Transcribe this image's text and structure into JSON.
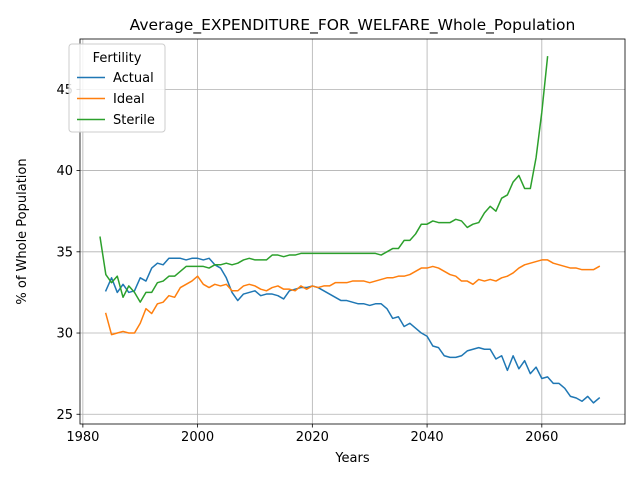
{
  "chart_data": {
    "type": "line",
    "title": "Average_EXPENDITURE_FOR_WELFARE_Whole_Population",
    "xlabel": "Years",
    "ylabel": "% of Whole Population",
    "xlim": [
      1979.5,
      2074.5
    ],
    "ylim": [
      24.4,
      48.1
    ],
    "xticks": [
      1980,
      2000,
      2020,
      2040,
      2060
    ],
    "yticks": [
      25,
      30,
      35,
      40,
      45
    ],
    "grid": true,
    "legend": {
      "title": "Fertility",
      "position": "upper-left"
    },
    "series": [
      {
        "name": "Actual",
        "color": "#1f77b4",
        "x": [
          1984,
          1985,
          1986,
          1987,
          1988,
          1989,
          1990,
          1991,
          1992,
          1993,
          1994,
          1995,
          1996,
          1997,
          1998,
          1999,
          2000,
          2001,
          2002,
          2003,
          2004,
          2005,
          2006,
          2007,
          2008,
          2009,
          2010,
          2011,
          2012,
          2013,
          2014,
          2015,
          2016,
          2017,
          2018,
          2019,
          2020,
          2021,
          2022,
          2023,
          2024,
          2025,
          2026,
          2027,
          2028,
          2029,
          2030,
          2031,
          2032,
          2033,
          2034,
          2035,
          2036,
          2037,
          2038,
          2039,
          2040,
          2041,
          2042,
          2043,
          2044,
          2045,
          2046,
          2047,
          2048,
          2049,
          2050,
          2051,
          2052,
          2053,
          2054,
          2055,
          2056,
          2057,
          2058,
          2059,
          2060,
          2061,
          2062,
          2063,
          2064,
          2065,
          2066,
          2067,
          2068,
          2069,
          2070
        ],
        "y": [
          32.6,
          33.4,
          32.5,
          33.0,
          32.5,
          32.6,
          33.4,
          33.2,
          34.0,
          34.3,
          34.2,
          34.6,
          34.6,
          34.6,
          34.5,
          34.6,
          34.6,
          34.5,
          34.6,
          34.2,
          34.0,
          33.4,
          32.5,
          32.0,
          32.4,
          32.5,
          32.6,
          32.3,
          32.4,
          32.4,
          32.3,
          32.1,
          32.6,
          32.7,
          32.8,
          32.8,
          32.9,
          32.8,
          32.6,
          32.4,
          32.2,
          32.0,
          32.0,
          31.9,
          31.8,
          31.8,
          31.7,
          31.8,
          31.8,
          31.5,
          30.9,
          31.0,
          30.4,
          30.6,
          30.3,
          30.0,
          29.8,
          29.2,
          29.1,
          28.6,
          28.5,
          28.5,
          28.6,
          28.9,
          29.0,
          29.1,
          29.0,
          29.0,
          28.4,
          28.6,
          27.7,
          28.6,
          27.8,
          28.3,
          27.5,
          27.9,
          27.2,
          27.3,
          26.9,
          26.9,
          26.6,
          26.1,
          26.0,
          25.8,
          26.1,
          25.7,
          26.0
        ]
      },
      {
        "name": "Ideal",
        "color": "#ff7f0e",
        "x": [
          1984,
          1985,
          1986,
          1987,
          1988,
          1989,
          1990,
          1991,
          1992,
          1993,
          1994,
          1995,
          1996,
          1997,
          1998,
          1999,
          2000,
          2001,
          2002,
          2003,
          2004,
          2005,
          2006,
          2007,
          2008,
          2009,
          2010,
          2011,
          2012,
          2013,
          2014,
          2015,
          2016,
          2017,
          2018,
          2019,
          2020,
          2021,
          2022,
          2023,
          2024,
          2025,
          2026,
          2027,
          2028,
          2029,
          2030,
          2031,
          2032,
          2033,
          2034,
          2035,
          2036,
          2037,
          2038,
          2039,
          2040,
          2041,
          2042,
          2043,
          2044,
          2045,
          2046,
          2047,
          2048,
          2049,
          2050,
          2051,
          2052,
          2053,
          2054,
          2055,
          2056,
          2057,
          2058,
          2059,
          2060,
          2061,
          2062,
          2063,
          2064,
          2065,
          2066,
          2067,
          2068,
          2069,
          2070
        ],
        "y": [
          31.2,
          29.9,
          30.0,
          30.1,
          30.0,
          30.0,
          30.6,
          31.5,
          31.2,
          31.8,
          31.9,
          32.3,
          32.2,
          32.8,
          33.0,
          33.2,
          33.5,
          33.0,
          32.8,
          33.0,
          32.9,
          33.0,
          32.6,
          32.6,
          32.9,
          33.0,
          32.9,
          32.7,
          32.6,
          32.8,
          32.9,
          32.7,
          32.7,
          32.6,
          32.9,
          32.7,
          32.9,
          32.8,
          32.9,
          32.9,
          33.1,
          33.1,
          33.1,
          33.2,
          33.2,
          33.2,
          33.1,
          33.2,
          33.3,
          33.4,
          33.4,
          33.5,
          33.5,
          33.6,
          33.8,
          34.0,
          34.0,
          34.1,
          34.0,
          33.8,
          33.6,
          33.5,
          33.2,
          33.2,
          33.0,
          33.3,
          33.2,
          33.3,
          33.2,
          33.4,
          33.5,
          33.7,
          34.0,
          34.2,
          34.3,
          34.4,
          34.5,
          34.5,
          34.3,
          34.2,
          34.1,
          34.0,
          34.0,
          33.9,
          33.9,
          33.9,
          34.1
        ]
      },
      {
        "name": "Sterile",
        "color": "#2ca02c",
        "x": [
          1983,
          1984,
          1985,
          1986,
          1987,
          1988,
          1989,
          1990,
          1991,
          1992,
          1993,
          1994,
          1995,
          1996,
          1997,
          1998,
          1999,
          2000,
          2001,
          2002,
          2003,
          2004,
          2005,
          2006,
          2007,
          2008,
          2009,
          2010,
          2011,
          2012,
          2013,
          2014,
          2015,
          2016,
          2017,
          2018,
          2019,
          2020,
          2021,
          2022,
          2023,
          2024,
          2025,
          2026,
          2027,
          2028,
          2029,
          2030,
          2031,
          2032,
          2033,
          2034,
          2035,
          2036,
          2037,
          2038,
          2039,
          2040,
          2041,
          2042,
          2043,
          2044,
          2045,
          2046,
          2047,
          2048,
          2049,
          2050,
          2051,
          2052,
          2053,
          2054,
          2055,
          2056,
          2057,
          2058,
          2059,
          2060,
          2061
        ],
        "y": [
          35.9,
          33.6,
          33.1,
          33.5,
          32.2,
          32.9,
          32.5,
          31.9,
          32.5,
          32.5,
          33.1,
          33.2,
          33.5,
          33.5,
          33.8,
          34.1,
          34.1,
          34.1,
          34.1,
          34.0,
          34.2,
          34.2,
          34.3,
          34.2,
          34.3,
          34.5,
          34.6,
          34.5,
          34.5,
          34.5,
          34.8,
          34.8,
          34.7,
          34.8,
          34.8,
          34.9,
          34.9,
          34.9,
          34.9,
          34.9,
          34.9,
          34.9,
          34.9,
          34.9,
          34.9,
          34.9,
          34.9,
          34.9,
          34.9,
          34.8,
          35.0,
          35.2,
          35.2,
          35.7,
          35.7,
          36.1,
          36.7,
          36.7,
          36.9,
          36.8,
          36.8,
          36.8,
          37.0,
          36.9,
          36.5,
          36.7,
          36.8,
          37.4,
          37.8,
          37.5,
          38.3,
          38.5,
          39.3,
          39.7,
          38.9,
          38.9,
          40.8,
          43.6,
          47.0
        ]
      }
    ]
  }
}
